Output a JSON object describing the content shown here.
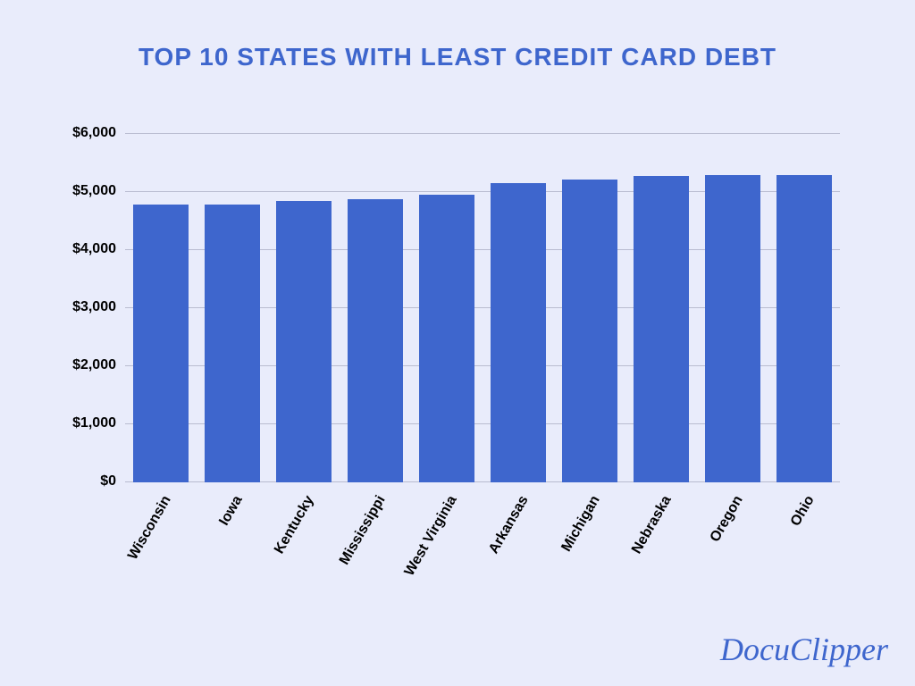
{
  "chart": {
    "type": "bar",
    "title": "TOP 10 STATES WITH LEAST CREDIT CARD DEBT",
    "title_color": "#3e66cd",
    "title_fontsize": 28,
    "title_fontweight": "800",
    "background_color": "#e9ecfb",
    "plot_background_color": "#e9ecfb",
    "bar_color": "#3e66cd",
    "bar_width": 0.78,
    "grid_color": "#b9bcd0",
    "axis_font_color": "#000000",
    "axis_fontsize": 16,
    "axis_fontweight": "700",
    "x_label_rotation_deg": -60,
    "ylim": [
      0,
      6000
    ],
    "ytick_step": 1000,
    "y_ticks": [
      {
        "value": 0,
        "label": "$0"
      },
      {
        "value": 1000,
        "label": "$1,000"
      },
      {
        "value": 2000,
        "label": "$2,000"
      },
      {
        "value": 3000,
        "label": "$3,000"
      },
      {
        "value": 4000,
        "label": "$4,000"
      },
      {
        "value": 5000,
        "label": "$5,000"
      },
      {
        "value": 6000,
        "label": "$6,000"
      }
    ],
    "categories": [
      "Wisconsin",
      "Iowa",
      "Kentucky",
      "Mississippi",
      "West Virginia",
      "Arkansas",
      "Michigan",
      "Nebraska",
      "Oregon",
      "Ohio"
    ],
    "values": [
      4780,
      4790,
      4850,
      4870,
      4960,
      5150,
      5220,
      5280,
      5290,
      5300
    ]
  },
  "branding": {
    "logo_text": "DocuClipper",
    "logo_color": "#3e66cd",
    "logo_font_family": "cursive",
    "logo_fontsize": 36
  }
}
